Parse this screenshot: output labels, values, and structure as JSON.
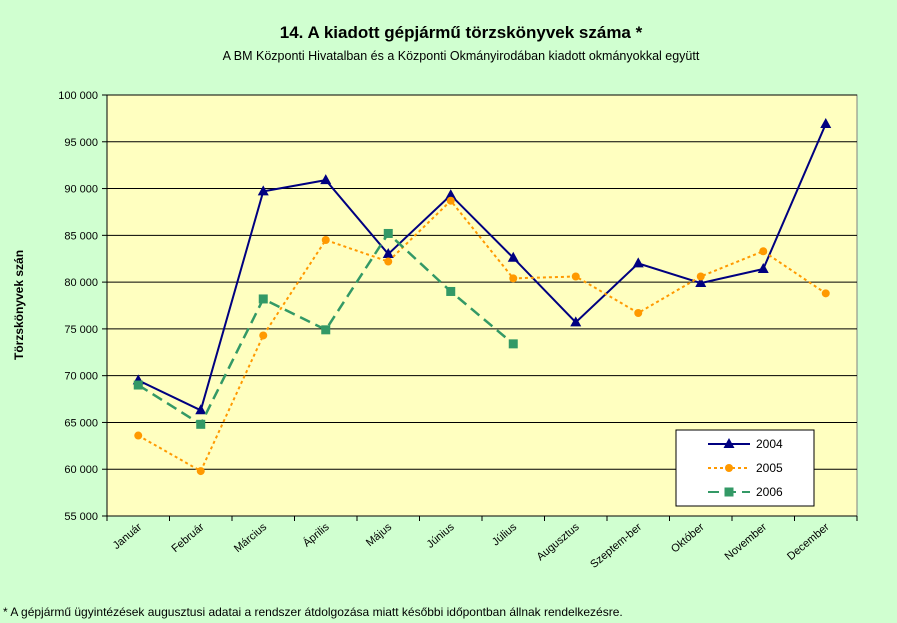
{
  "chart_data": {
    "type": "line",
    "title": "14. A  kiadott gépjármű  törzskönyvek száma *",
    "subtitle": "A BM Központi Hivatalban és a Központi Okmányirodában kiadott okmányokkal együtt",
    "ylabel": "Törzskönyvek szán",
    "xlabel": "",
    "categories": [
      "Január",
      "Február",
      "Március",
      "Április",
      "Május",
      "Június",
      "Július",
      "Augusztus",
      "Szeptem-ber",
      "Október",
      "November",
      "December"
    ],
    "ylim": [
      55000,
      100000
    ],
    "yticks": [
      55000,
      60000,
      65000,
      70000,
      75000,
      80000,
      85000,
      90000,
      95000,
      100000
    ],
    "ytick_labels": [
      "55 000",
      "60 000",
      "65 000",
      "70 000",
      "75 000",
      "80 000",
      "85 000",
      "90 000",
      "95 000",
      "100 000"
    ],
    "grid": true,
    "legend_position": "bottom-right",
    "background_color": "#ffffc0",
    "page_color": "#d0ffd0",
    "series": [
      {
        "name": "2004",
        "color": "#000080",
        "line_style": "solid",
        "marker": "triangle",
        "values": [
          69500,
          66300,
          89700,
          90900,
          83000,
          89300,
          82600,
          75700,
          82000,
          79900,
          81400,
          96900
        ]
      },
      {
        "name": "2005",
        "color": "#ff9900",
        "line_style": "dotted",
        "marker": "circle",
        "values": [
          63600,
          59800,
          74300,
          84500,
          82200,
          88700,
          80400,
          80600,
          76700,
          80600,
          83300,
          78800
        ]
      },
      {
        "name": "2006",
        "color": "#339966",
        "line_style": "dashed",
        "marker": "square",
        "values": [
          69000,
          64800,
          78200,
          74900,
          85200,
          79000,
          73400,
          null,
          null,
          null,
          null,
          null
        ]
      }
    ]
  },
  "footnote": "* A gépjármű ügyintézések augusztusi adatai a rendszer átdolgozása miatt későbbi időpontban állnak rendelkezésre."
}
